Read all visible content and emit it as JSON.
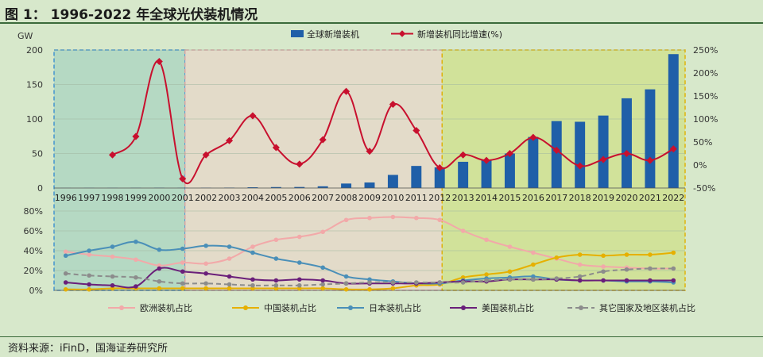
{
  "figure": {
    "title": "图 1：  1996-2022 年全球光伏装机情况",
    "source": "资料来源：iFinD，国海证券研究所"
  },
  "colors": {
    "bar": "#1f5fa8",
    "growth": "#c8102e",
    "europe": "#f2a9a9",
    "china": "#e6b000",
    "japan": "#4a8fb8",
    "usa": "#6a1f7a",
    "other": "#8c8c8c",
    "zone1": "#a9d4c0",
    "zone2": "#e7d7c8",
    "zone3": "#cfe08a",
    "zone1_border": "#3b8fd0",
    "zone2_border": "#d7a0a0",
    "zone3_border": "#e0b000"
  },
  "chart_data": [
    {
      "type": "bar+line",
      "years": [
        "1996",
        "1997",
        "1998",
        "1999",
        "2000",
        "2001",
        "2002",
        "2003",
        "2004",
        "2005",
        "2006",
        "2007",
        "2008",
        "2009",
        "2010",
        "2011",
        "2012",
        "2013",
        "2014",
        "2015",
        "2016",
        "2017",
        "2018",
        "2019",
        "2020",
        "2021",
        "2022"
      ],
      "y_left_unit": "GW",
      "y_left_ticks": [
        "0",
        "50",
        "100",
        "150",
        "200"
      ],
      "y_left_lim": [
        0,
        200
      ],
      "y_right_ticks": [
        "-50%",
        "0%",
        "50%",
        "100%",
        "150%",
        "200%",
        "250%"
      ],
      "y_right_lim": [
        -50,
        250
      ],
      "series": [
        {
          "name": "全球新增装机",
          "type": "bar",
          "axis": "left",
          "values": [
            0.1,
            0.2,
            0.2,
            0.3,
            0.4,
            0.3,
            0.4,
            0.6,
            1.1,
            1.4,
            1.5,
            2.5,
            6.5,
            8,
            19,
            32,
            30,
            38,
            40,
            50,
            74,
            97,
            96,
            105,
            130,
            143,
            194
          ]
        },
        {
          "name": "新增装机同比增速(%)",
          "type": "line",
          "axis": "right",
          "values": [
            null,
            null,
            22,
            62,
            225,
            -30,
            22,
            53,
            107,
            38,
            2,
            55,
            160,
            30,
            132,
            75,
            -6,
            22,
            10,
            25,
            60,
            32,
            -2,
            12,
            25,
            10,
            35
          ]
        }
      ]
    },
    {
      "type": "line",
      "years": [
        "1996",
        "1997",
        "1998",
        "1999",
        "2000",
        "2001",
        "2002",
        "2003",
        "2004",
        "2005",
        "2006",
        "2007",
        "2008",
        "2009",
        "2010",
        "2011",
        "2012",
        "2013",
        "2014",
        "2015",
        "2016",
        "2017",
        "2018",
        "2019",
        "2020",
        "2021",
        "2022"
      ],
      "y_ticks": [
        "0%",
        "20%",
        "40%",
        "60%",
        "80%"
      ],
      "ylim": [
        0,
        80
      ],
      "series": [
        {
          "name": "欧洲装机占比",
          "values": [
            39,
            36,
            34,
            31,
            25,
            28,
            27,
            32,
            44,
            51,
            54,
            59,
            71,
            73,
            74,
            73,
            71,
            60,
            51,
            44,
            38,
            32,
            26,
            24,
            23,
            22,
            22
          ]
        },
        {
          "name": "中国装机占比",
          "values": [
            1,
            1,
            2,
            2,
            2,
            2,
            2,
            2,
            2,
            2,
            2,
            2,
            1,
            1,
            2,
            5,
            6,
            13,
            16,
            19,
            26,
            33,
            36,
            35,
            36,
            36,
            38
          ]
        },
        {
          "name": "日本装机占比",
          "values": [
            35,
            40,
            44,
            49,
            41,
            42,
            45,
            44,
            38,
            32,
            28,
            23,
            14,
            11,
            9,
            7,
            7,
            10,
            12,
            13,
            14,
            11,
            10,
            10,
            9,
            9,
            8
          ]
        },
        {
          "name": "美国装机占比",
          "values": [
            8,
            6,
            5,
            4,
            22,
            19,
            17,
            14,
            11,
            10,
            11,
            10,
            7,
            7,
            7,
            7,
            8,
            9,
            9,
            11,
            11,
            11,
            10,
            10,
            10,
            10,
            10
          ]
        },
        {
          "name": "其它国家及地区装机占比",
          "values": [
            17,
            15,
            14,
            13,
            9,
            7,
            7,
            6,
            5,
            5,
            5,
            6,
            7,
            8,
            8,
            8,
            8,
            8,
            10,
            11,
            11,
            12,
            14,
            19,
            21,
            22,
            22
          ]
        }
      ]
    }
  ]
}
